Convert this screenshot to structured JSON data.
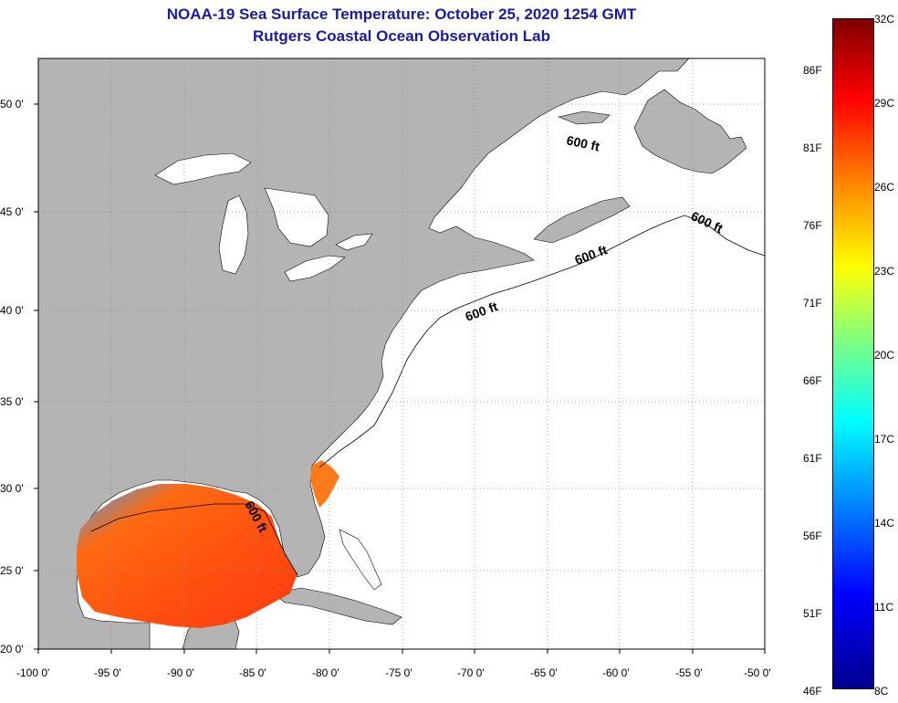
{
  "title": {
    "line1": "NOAA-19 Sea Surface Temperature:  October 25, 2020 1254 GMT",
    "line2": "Rutgers Coastal Ocean Observation Lab"
  },
  "map": {
    "lon_range": [
      -100,
      -50
    ],
    "lat_range": [
      20,
      52.5
    ],
    "lon_ticks": [
      "-100 0'",
      "-95 0'",
      "-90 0'",
      "-85 0'",
      "-80 0'",
      "-75 0'",
      "-70 0'",
      "-65 0'",
      "-60 0'",
      "-55 0'",
      "-50 0'"
    ],
    "lat_ticks": [
      "50 0'",
      "45 0'",
      "40 0'",
      "35 0'",
      "30 0'",
      "25 0'",
      "20 0'"
    ],
    "contour_label": "600 ft",
    "colors": {
      "land": "#b4b4b4",
      "ocean_nodata": "#ffffff",
      "gridline": "#888888"
    }
  },
  "colorbar": {
    "min_c": 8,
    "max_c": 32,
    "celsius_labels": [
      "32C",
      "29C",
      "26C",
      "23C",
      "20C",
      "17C",
      "14C",
      "11C",
      "8C"
    ],
    "fahrenheit_labels": [
      "86F",
      "81F",
      "76F",
      "71F",
      "66F",
      "61F",
      "56F",
      "51F",
      "46F"
    ]
  }
}
